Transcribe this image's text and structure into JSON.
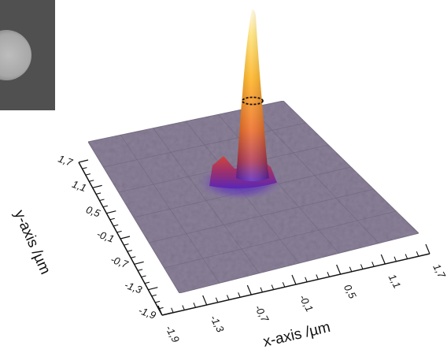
{
  "chart_data": {
    "type": "surface3d",
    "title": "",
    "xlabel": "x-axis /µm",
    "ylabel": "y-axis /µm",
    "x_ticks": [
      "-1,9",
      "-1,3",
      "-0,7",
      "-0,1",
      "0,5",
      "1,1",
      "1,7"
    ],
    "y_ticks": [
      "-1,9",
      "-1,3",
      "-0,7",
      "-0,1",
      "0,5",
      "1,1",
      "1,7"
    ],
    "xlim": [
      -1.9,
      1.7
    ],
    "ylim": [
      -1.9,
      1.7
    ],
    "grid": true,
    "surface": {
      "base_color": "#8a8098",
      "peak": {
        "x": 0.0,
        "y": 0.3,
        "relative_height": 1.0
      },
      "shoulder_ring_radius_um": 0.35,
      "colormap": [
        "#4a22b8",
        "#7a2a8a",
        "#c83a3a",
        "#f07a1e",
        "#ffb81a",
        "#fff0c0"
      ]
    }
  },
  "inset": {
    "description_icon": "sem-micrograph-inset"
  }
}
